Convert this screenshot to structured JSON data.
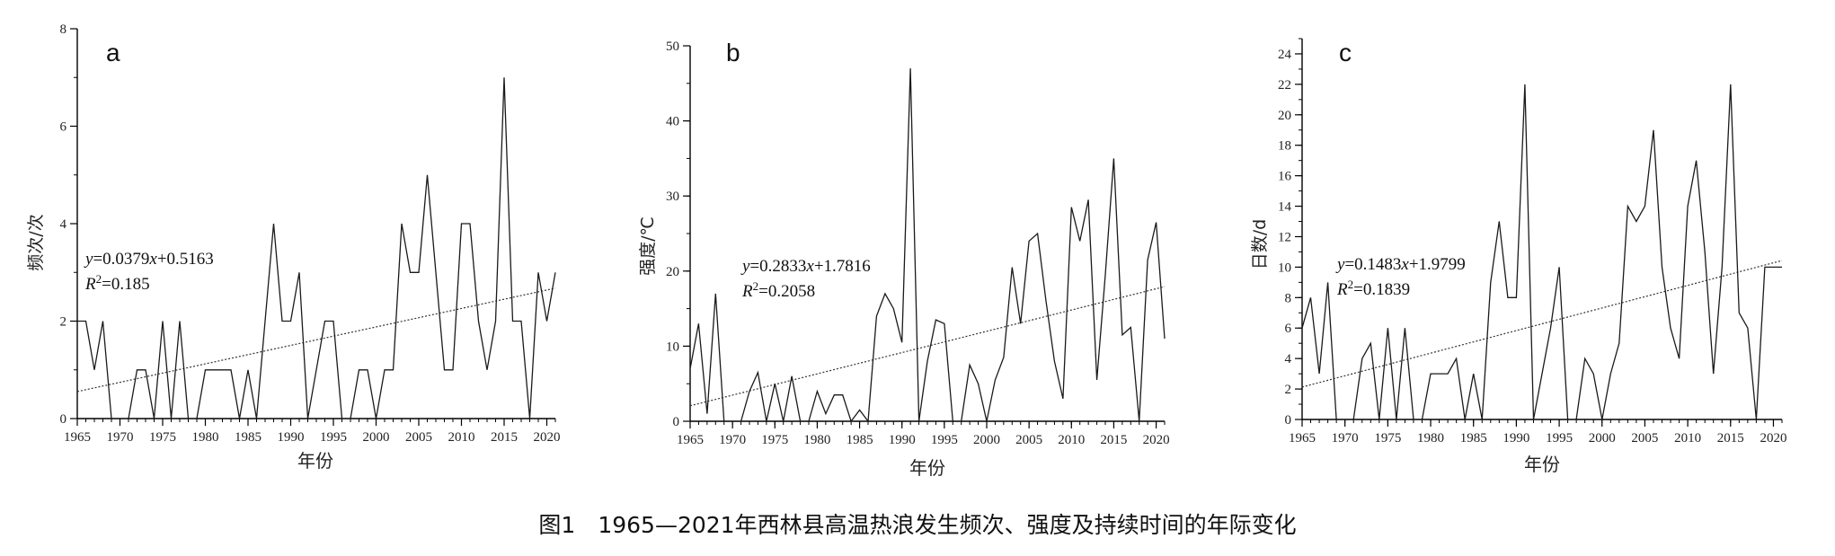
{
  "caption": "图1　1965—2021年西林县高温热浪发生频次、强度及持续时间的年际变化",
  "colors": {
    "line": "#1a1a1a",
    "trend": "#333333",
    "axis": "#000000"
  },
  "chart_data": [
    {
      "type": "line",
      "label": "a",
      "xlabel": "年份",
      "ylabel": "频次/次",
      "xlim": [
        1965,
        2021
      ],
      "ylim": [
        0,
        8
      ],
      "xticks": [
        1965,
        1970,
        1975,
        1980,
        1985,
        1990,
        1995,
        2000,
        2005,
        2010,
        2015,
        2020
      ],
      "yticks": [
        0,
        2,
        4,
        6,
        8
      ],
      "minor_y_step": 1,
      "years_start": 1965,
      "values": [
        2,
        2,
        1,
        2,
        0,
        0,
        0,
        1,
        1,
        0,
        2,
        0,
        2,
        0,
        0,
        1,
        1,
        1,
        1,
        0,
        1,
        0,
        2,
        4,
        2,
        2,
        3,
        0,
        1,
        2,
        2,
        0,
        0,
        1,
        1,
        0,
        1,
        1,
        4,
        3,
        3,
        5,
        3,
        1,
        1,
        4,
        4,
        2,
        1,
        2,
        7,
        2,
        2,
        0,
        3,
        2,
        3
      ],
      "trend": {
        "slope": 0.0379,
        "intercept": 0.5163
      },
      "equation": {
        "y_prefix": "y",
        "eq_mid": "=0.0379",
        "x_var": "x",
        "eq_end": "+0.5163",
        "r_label": "R",
        "r_sup": "2",
        "r_value": "=0.185"
      }
    },
    {
      "type": "line",
      "label": "b",
      "xlabel": "年份",
      "ylabel": "强度/℃",
      "xlim": [
        1965,
        2021
      ],
      "ylim": [
        0,
        50
      ],
      "xticks": [
        1965,
        1970,
        1975,
        1980,
        1985,
        1990,
        1995,
        2000,
        2005,
        2010,
        2015,
        2020
      ],
      "yticks": [
        0,
        10,
        20,
        30,
        40,
        50
      ],
      "minor_y_step": 5,
      "years_start": 1965,
      "values": [
        7,
        13,
        1,
        17,
        0,
        0,
        0,
        4,
        6.5,
        0,
        5,
        0,
        6,
        0,
        0,
        4,
        1,
        3.5,
        3.5,
        0,
        1.5,
        0,
        14,
        17,
        15,
        10.5,
        47,
        0,
        8,
        13.5,
        13,
        0,
        0,
        7.5,
        5,
        0,
        5.5,
        8.5,
        20.5,
        13,
        24,
        25,
        16,
        8,
        3,
        28.5,
        24,
        29.5,
        5.5,
        19.5,
        35,
        11.5,
        12.5,
        0,
        21.5,
        26.5,
        11
      ],
      "trend": {
        "slope": 0.2833,
        "intercept": 1.7816
      },
      "equation": {
        "y_prefix": "y",
        "eq_mid": "=0.2833",
        "x_var": "x",
        "eq_end": "+1.7816",
        "r_label": "R",
        "r_sup": "2",
        "r_value": "=0.2058"
      }
    },
    {
      "type": "line",
      "label": "c",
      "xlabel": "年份",
      "ylabel": "日数/d",
      "xlim": [
        1965,
        2021
      ],
      "ylim": [
        0,
        25
      ],
      "xticks": [
        1965,
        1970,
        1975,
        1980,
        1985,
        1990,
        1995,
        2000,
        2005,
        2010,
        2015,
        2020
      ],
      "yticks": [
        0,
        2,
        4,
        6,
        8,
        10,
        12,
        14,
        16,
        18,
        20,
        22,
        24
      ],
      "minor_y_step": 1,
      "years_start": 1965,
      "values": [
        6,
        8,
        3,
        9,
        0,
        0,
        0,
        4,
        5,
        0,
        6,
        0,
        6,
        0,
        0,
        3,
        3,
        3,
        4,
        0,
        3,
        0,
        9,
        13,
        8,
        8,
        22,
        0,
        3,
        6,
        10,
        0,
        0,
        4,
        3,
        0,
        3,
        5,
        14,
        13,
        14,
        19,
        10,
        6,
        4,
        14,
        17,
        11,
        3,
        10,
        22,
        7,
        6,
        0,
        10,
        10,
        10
      ],
      "trend": {
        "slope": 0.1483,
        "intercept": 1.9799
      },
      "equation": {
        "y_prefix": "y",
        "eq_mid": "=0.1483",
        "x_var": "x",
        "eq_end": "+1.9799",
        "r_label": "R",
        "r_sup": "2",
        "r_value": "=0.1839"
      }
    }
  ]
}
